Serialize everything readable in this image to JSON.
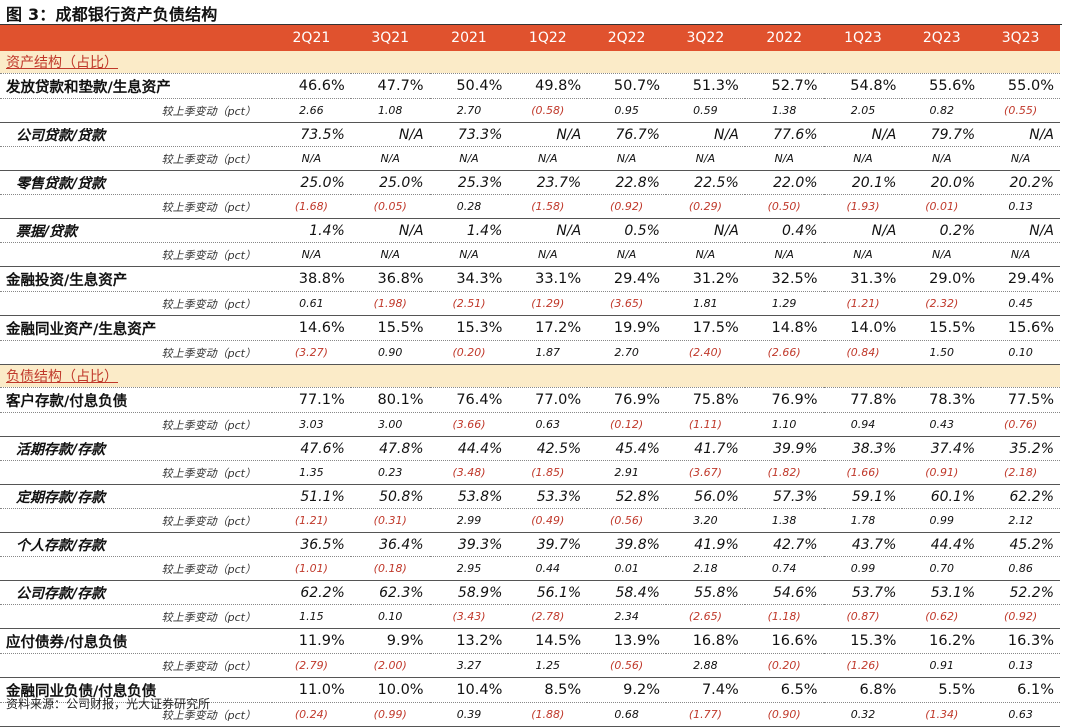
{
  "figure": {
    "title": "图 3：成都银行资产负债结构"
  },
  "columns": [
    "2Q21",
    "3Q21",
    "2021",
    "1Q22",
    "2Q22",
    "3Q22",
    "2022",
    "1Q23",
    "2Q23",
    "3Q23"
  ],
  "change_label": "较上季变动（pct）",
  "sections": [
    {
      "title": "资产结构（占比）",
      "items": [
        {
          "label": "发放贷款和垫款/生息资产",
          "level": "main",
          "values": [
            "46.6%",
            "47.7%",
            "50.4%",
            "49.8%",
            "50.7%",
            "51.3%",
            "52.7%",
            "54.8%",
            "55.6%",
            "55.0%"
          ],
          "changes": [
            "2.66",
            "1.08",
            "2.70",
            "(0.58)",
            "0.95",
            "0.59",
            "1.38",
            "2.05",
            "0.82",
            "(0.55)"
          ]
        },
        {
          "label": "公司贷款/贷款",
          "level": "sub",
          "values": [
            "73.5%",
            "N/A",
            "73.3%",
            "N/A",
            "76.7%",
            "N/A",
            "77.6%",
            "N/A",
            "79.7%",
            "N/A"
          ],
          "changes": [
            "N/A",
            "N/A",
            "N/A",
            "N/A",
            "N/A",
            "N/A",
            "N/A",
            "N/A",
            "N/A",
            "N/A"
          ]
        },
        {
          "label": "零售贷款/贷款",
          "level": "sub",
          "values": [
            "25.0%",
            "25.0%",
            "25.3%",
            "23.7%",
            "22.8%",
            "22.5%",
            "22.0%",
            "20.1%",
            "20.0%",
            "20.2%"
          ],
          "changes": [
            "(1.68)",
            "(0.05)",
            "0.28",
            "(1.58)",
            "(0.92)",
            "(0.29)",
            "(0.50)",
            "(1.93)",
            "(0.01)",
            "0.13"
          ]
        },
        {
          "label": "票据/贷款",
          "level": "sub",
          "values": [
            "1.4%",
            "N/A",
            "1.4%",
            "N/A",
            "0.5%",
            "N/A",
            "0.4%",
            "N/A",
            "0.2%",
            "N/A"
          ],
          "changes": [
            "N/A",
            "N/A",
            "N/A",
            "N/A",
            "N/A",
            "N/A",
            "N/A",
            "N/A",
            "N/A",
            "N/A"
          ]
        },
        {
          "label": "金融投资/生息资产",
          "level": "main",
          "values": [
            "38.8%",
            "36.8%",
            "34.3%",
            "33.1%",
            "29.4%",
            "31.2%",
            "32.5%",
            "31.3%",
            "29.0%",
            "29.4%"
          ],
          "changes": [
            "0.61",
            "(1.98)",
            "(2.51)",
            "(1.29)",
            "(3.65)",
            "1.81",
            "1.29",
            "(1.21)",
            "(2.32)",
            "0.45"
          ]
        },
        {
          "label": "金融同业资产/生息资产",
          "level": "main",
          "values": [
            "14.6%",
            "15.5%",
            "15.3%",
            "17.2%",
            "19.9%",
            "17.5%",
            "14.8%",
            "14.0%",
            "15.5%",
            "15.6%"
          ],
          "changes": [
            "(3.27)",
            "0.90",
            "(0.20)",
            "1.87",
            "2.70",
            "(2.40)",
            "(2.66)",
            "(0.84)",
            "1.50",
            "0.10"
          ]
        }
      ]
    },
    {
      "title": "负债结构（占比）",
      "items": [
        {
          "label": "客户存款/付息负债",
          "level": "main",
          "values": [
            "77.1%",
            "80.1%",
            "76.4%",
            "77.0%",
            "76.9%",
            "75.8%",
            "76.9%",
            "77.8%",
            "78.3%",
            "77.5%"
          ],
          "changes": [
            "3.03",
            "3.00",
            "(3.66)",
            "0.63",
            "(0.12)",
            "(1.11)",
            "1.10",
            "0.94",
            "0.43",
            "(0.76)"
          ]
        },
        {
          "label": "活期存款/存款",
          "level": "sub",
          "values": [
            "47.6%",
            "47.8%",
            "44.4%",
            "42.5%",
            "45.4%",
            "41.7%",
            "39.9%",
            "38.3%",
            "37.4%",
            "35.2%"
          ],
          "changes": [
            "1.35",
            "0.23",
            "(3.48)",
            "(1.85)",
            "2.91",
            "(3.67)",
            "(1.82)",
            "(1.66)",
            "(0.91)",
            "(2.18)"
          ]
        },
        {
          "label": "定期存款/存款",
          "level": "sub",
          "values": [
            "51.1%",
            "50.8%",
            "53.8%",
            "53.3%",
            "52.8%",
            "56.0%",
            "57.3%",
            "59.1%",
            "60.1%",
            "62.2%"
          ],
          "changes": [
            "(1.21)",
            "(0.31)",
            "2.99",
            "(0.49)",
            "(0.56)",
            "3.20",
            "1.38",
            "1.78",
            "0.99",
            "2.12"
          ]
        },
        {
          "label": "个人存款/存款",
          "level": "sub",
          "values": [
            "36.5%",
            "36.4%",
            "39.3%",
            "39.7%",
            "39.8%",
            "41.9%",
            "42.7%",
            "43.7%",
            "44.4%",
            "45.2%"
          ],
          "changes": [
            "(1.01)",
            "(0.18)",
            "2.95",
            "0.44",
            "0.01",
            "2.18",
            "0.74",
            "0.99",
            "0.70",
            "0.86"
          ]
        },
        {
          "label": "公司存款/存款",
          "level": "sub",
          "values": [
            "62.2%",
            "62.3%",
            "58.9%",
            "56.1%",
            "58.4%",
            "55.8%",
            "54.6%",
            "53.7%",
            "53.1%",
            "52.2%"
          ],
          "changes": [
            "1.15",
            "0.10",
            "(3.43)",
            "(2.78)",
            "2.34",
            "(2.65)",
            "(1.18)",
            "(0.87)",
            "(0.62)",
            "(0.92)"
          ]
        },
        {
          "label": "应付债券/付息负债",
          "level": "main",
          "values": [
            "11.9%",
            "9.9%",
            "13.2%",
            "14.5%",
            "13.9%",
            "16.8%",
            "16.6%",
            "15.3%",
            "16.2%",
            "16.3%"
          ],
          "changes": [
            "(2.79)",
            "(2.00)",
            "3.27",
            "1.25",
            "(0.56)",
            "2.88",
            "(0.20)",
            "(1.26)",
            "0.91",
            "0.13"
          ]
        },
        {
          "label": "金融同业负债/付息负债",
          "level": "main",
          "values": [
            "11.0%",
            "10.0%",
            "10.4%",
            "8.5%",
            "9.2%",
            "7.4%",
            "6.5%",
            "6.8%",
            "5.5%",
            "6.1%"
          ],
          "changes": [
            "(0.24)",
            "(0.99)",
            "0.39",
            "(1.88)",
            "0.68",
            "(1.77)",
            "(0.90)",
            "0.32",
            "(1.34)",
            "0.63"
          ]
        }
      ]
    }
  ],
  "source": "资料来源：公司财报，光大证券研究所",
  "colors": {
    "header_bg": "#E0522E",
    "section_bg": "#FBEBC8",
    "negative": "#C0392B"
  }
}
